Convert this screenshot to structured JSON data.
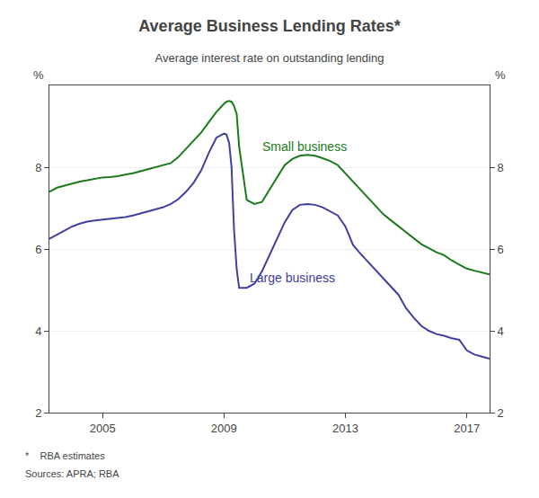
{
  "chart_data": {
    "type": "line",
    "title": "Average Business Lending Rates*",
    "subtitle": "Average interest rate on outstanding lending",
    "ylabel": "%",
    "y2label": "%",
    "footnotes": [
      "*    RBA estimates",
      "Sources: APRA; RBA"
    ],
    "xlim": [
      2003.25,
      2017.75
    ],
    "xticks": [
      2005,
      2009,
      2013,
      2017
    ],
    "ylim": [
      2,
      10
    ],
    "yticks": [
      2,
      4,
      6,
      8
    ],
    "y2lim": [
      2,
      10
    ],
    "y2ticks": [
      2,
      4,
      6,
      8
    ],
    "grid": true,
    "x": [
      2003.25,
      2003.5,
      2003.75,
      2004.0,
      2004.25,
      2004.5,
      2004.75,
      2005.0,
      2005.25,
      2005.5,
      2005.75,
      2006.0,
      2006.25,
      2006.5,
      2006.75,
      2007.0,
      2007.25,
      2007.5,
      2007.75,
      2008.0,
      2008.25,
      2008.5,
      2008.75,
      2009.0,
      2009.08,
      2009.17,
      2009.25,
      2009.33,
      2009.42,
      2009.5,
      2009.75,
      2010.0,
      2010.25,
      2010.5,
      2010.75,
      2011.0,
      2011.25,
      2011.5,
      2011.75,
      2012.0,
      2012.25,
      2012.5,
      2012.75,
      2013.0,
      2013.25,
      2013.5,
      2013.75,
      2014.0,
      2014.25,
      2014.5,
      2014.75,
      2015.0,
      2015.25,
      2015.5,
      2015.75,
      2016.0,
      2016.25,
      2016.5,
      2016.75,
      2017.0,
      2017.25,
      2017.5,
      2017.75
    ],
    "series": [
      {
        "name": "Small business",
        "color": "#1a7a1a",
        "values": [
          7.4,
          7.5,
          7.55,
          7.6,
          7.65,
          7.68,
          7.72,
          7.75,
          7.76,
          7.78,
          7.82,
          7.85,
          7.9,
          7.95,
          8.0,
          8.05,
          8.1,
          8.25,
          8.45,
          8.65,
          8.85,
          9.1,
          9.35,
          9.55,
          9.6,
          9.62,
          9.6,
          9.5,
          9.3,
          8.5,
          7.2,
          7.1,
          7.15,
          7.45,
          7.75,
          8.05,
          8.2,
          8.28,
          8.3,
          8.28,
          8.22,
          8.15,
          8.05,
          7.85,
          7.65,
          7.45,
          7.25,
          7.05,
          6.85,
          6.7,
          6.55,
          6.4,
          6.25,
          6.12,
          6.02,
          5.92,
          5.85,
          5.72,
          5.62,
          5.52,
          5.47,
          5.43,
          5.38
        ]
      },
      {
        "name": "Large business",
        "color": "#4040a0",
        "values": [
          6.25,
          6.35,
          6.45,
          6.55,
          6.62,
          6.67,
          6.7,
          6.72,
          6.73,
          6.75,
          6.78,
          6.82,
          6.87,
          6.92,
          6.97,
          7.02,
          7.1,
          7.22,
          7.4,
          7.62,
          7.92,
          8.35,
          8.72,
          8.82,
          8.8,
          8.6,
          8.0,
          6.5,
          5.5,
          5.05,
          5.05,
          5.15,
          5.45,
          5.85,
          6.25,
          6.65,
          6.95,
          7.08,
          7.1,
          7.08,
          7.02,
          6.92,
          6.82,
          6.55,
          6.1,
          5.88,
          5.68,
          5.48,
          5.28,
          5.08,
          4.88,
          4.55,
          4.32,
          4.12,
          4.0,
          3.92,
          3.88,
          3.82,
          3.78,
          3.52,
          3.42,
          3.37,
          3.32
        ]
      }
    ]
  }
}
